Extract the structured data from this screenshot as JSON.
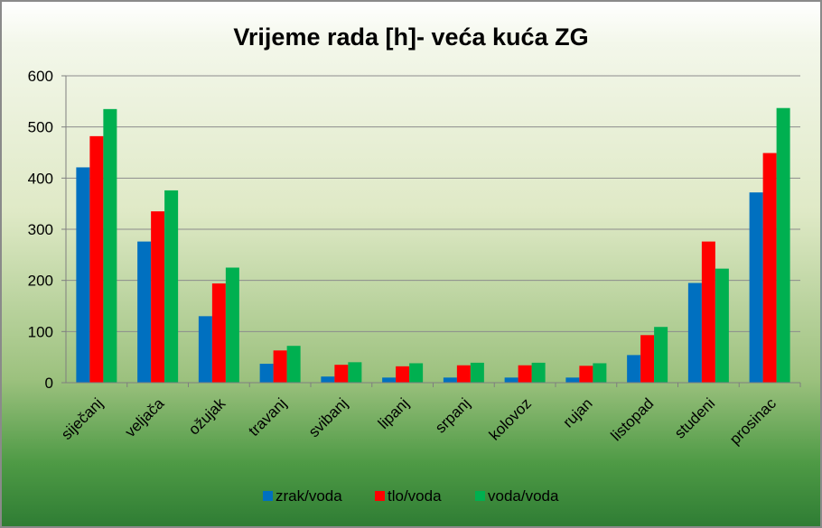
{
  "chart_data": {
    "type": "bar",
    "title": "Vrijeme rada [h]- veća kuća ZG",
    "xlabel": "",
    "ylabel": "",
    "ylim": [
      0,
      600
    ],
    "yticks": [
      "0",
      "100",
      "200",
      "300",
      "400",
      "500",
      "600"
    ],
    "grid": true,
    "legend_position": "bottom",
    "categories": [
      "siječanj",
      "veljača",
      "ožujak",
      "travanj",
      "svibanj",
      "lipanj",
      "srpanj",
      "kolovoz",
      "rujan",
      "listopad",
      "studeni",
      "prosinac"
    ],
    "series": [
      {
        "name": "zrak/voda",
        "color": "#0070c0",
        "values": [
          421,
          276,
          130,
          37,
          12,
          10,
          10,
          10,
          10,
          54,
          195,
          372
        ]
      },
      {
        "name": "tlo/voda",
        "color": "#ff0000",
        "values": [
          482,
          335,
          194,
          63,
          35,
          32,
          34,
          34,
          33,
          93,
          276,
          449
        ]
      },
      {
        "name": "voda/voda",
        "color": "#00b050",
        "values": [
          535,
          376,
          225,
          72,
          40,
          38,
          39,
          39,
          38,
          109,
          223,
          537
        ]
      }
    ]
  }
}
